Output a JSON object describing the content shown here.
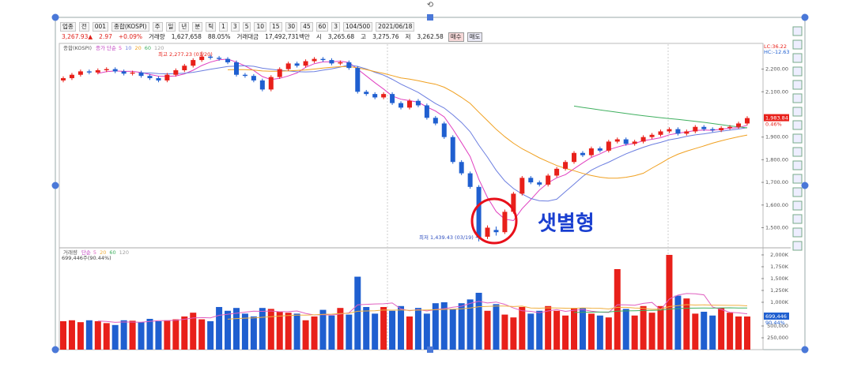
{
  "toolbar": [
    "업종",
    "전",
    "001",
    "종합(KOSPI)",
    "주",
    "일",
    "년",
    "분",
    "틱",
    "1",
    "3",
    "5",
    "10",
    "15",
    "30",
    "45",
    "60",
    "3",
    "104/500",
    "2021/06/18"
  ],
  "quote": [
    "3,267.93▲",
    "2.97",
    "+0.09%",
    "거래량",
    "1,627,658",
    "88.05%",
    "거래대금",
    "17,492,731백만",
    "시",
    "3,265.68",
    "고",
    "3,275.76",
    "저",
    "3,262.58",
    "매수",
    "매도"
  ],
  "chart_data": [
    {
      "type": "candlestick",
      "title": "종합(KOSPI)",
      "ma_label": "종가 단순",
      "ma": [
        {
          "period": 5,
          "color": "#e040c0"
        },
        {
          "period": 10,
          "color": "#6c7ee0"
        },
        {
          "period": 20,
          "color": "#f0a020"
        },
        {
          "period": 60,
          "color": "#40b060"
        },
        {
          "period": 120,
          "color": "#a0a0a0"
        }
      ],
      "up_color": "#e8201a",
      "down_color": "#1f5fd0",
      "open": [
        2150,
        2160,
        2175,
        2190,
        2185,
        2195,
        2200,
        2190,
        2180,
        2185,
        2170,
        2160,
        2150,
        2175,
        2195,
        2215,
        2240,
        2255,
        2250,
        2245,
        2230,
        2175,
        2170,
        2150,
        2110,
        2165,
        2200,
        2225,
        2215,
        2235,
        2245,
        2240,
        2225,
        2230,
        2205,
        2100,
        2090,
        2075,
        2090,
        2050,
        2030,
        2060,
        2040,
        1985,
        1960,
        1900,
        1790,
        1740,
        1680,
        1460,
        1490,
        1480,
        1570,
        1650,
        1720,
        1700,
        1690,
        1730,
        1760,
        1790,
        1830,
        1820,
        1850,
        1840,
        1880,
        1890,
        1870,
        1880,
        1900,
        1910,
        1925,
        1935,
        1915,
        1925,
        1945,
        1935,
        1930,
        1940,
        1945,
        1960
      ],
      "high": [
        2168,
        2183,
        2198,
        2198,
        2203,
        2208,
        2208,
        2198,
        2193,
        2193,
        2178,
        2168,
        2183,
        2203,
        2223,
        2248,
        2277.23,
        2263,
        2258,
        2253,
        2238,
        2183,
        2178,
        2158,
        2173,
        2208,
        2233,
        2233,
        2243,
        2253,
        2253,
        2248,
        2238,
        2238,
        2213,
        2108,
        2098,
        2098,
        2098,
        2058,
        2068,
        2068,
        2048,
        1993,
        1968,
        1908,
        1798,
        1748,
        1688,
        1510,
        1505,
        1580,
        1658,
        1728,
        1728,
        1708,
        1738,
        1768,
        1798,
        1838,
        1838,
        1858,
        1858,
        1888,
        1898,
        1898,
        1888,
        1908,
        1918,
        1933,
        1943,
        1943,
        1933,
        1953,
        1953,
        1943,
        1948,
        1953,
        1968,
        1992
      ],
      "low": [
        2142,
        2152,
        2167,
        2177,
        2177,
        2187,
        2182,
        2172,
        2172,
        2162,
        2152,
        2142,
        2142,
        2167,
        2187,
        2207,
        2232,
        2242,
        2237,
        2222,
        2167,
        2162,
        2142,
        2102,
        2102,
        2157,
        2192,
        2207,
        2207,
        2227,
        2232,
        2217,
        2217,
        2197,
        2092,
        2082,
        2067,
        2067,
        2042,
        2022,
        2022,
        2032,
        1977,
        1952,
        1892,
        1782,
        1732,
        1672,
        1439.43,
        1450,
        1465,
        1472,
        1562,
        1642,
        1692,
        1682,
        1682,
        1722,
        1752,
        1782,
        1812,
        1812,
        1832,
        1832,
        1872,
        1862,
        1862,
        1872,
        1892,
        1902,
        1917,
        1907,
        1907,
        1917,
        1927,
        1922,
        1922,
        1932,
        1937,
        1952
      ],
      "close": [
        2160,
        2175,
        2190,
        2185,
        2195,
        2200,
        2190,
        2180,
        2185,
        2170,
        2160,
        2150,
        2175,
        2195,
        2215,
        2240,
        2255,
        2250,
        2245,
        2230,
        2175,
        2170,
        2150,
        2110,
        2165,
        2200,
        2225,
        2215,
        2235,
        2245,
        2240,
        2225,
        2230,
        2205,
        2100,
        2090,
        2075,
        2090,
        2050,
        2030,
        2060,
        2040,
        1985,
        1960,
        1900,
        1790,
        1740,
        1680,
        1457,
        1500,
        1480,
        1570,
        1650,
        1720,
        1700,
        1690,
        1730,
        1760,
        1790,
        1830,
        1820,
        1850,
        1840,
        1880,
        1890,
        1870,
        1880,
        1900,
        1910,
        1925,
        1935,
        1915,
        1925,
        1945,
        1935,
        1930,
        1940,
        1945,
        1960,
        1983.84
      ],
      "last_label": "1,983.84",
      "last_change": "0.46%",
      "lc": "LC:36.22",
      "hc": "HC:-12.63",
      "high_label": "최고 2,277.23 (01/20)",
      "low_label": "최저 1,439.43 (03/19) →",
      "pattern_label": "샛별형",
      "ylim": [
        1418,
        2303
      ],
      "yticks": [
        {
          "value": 1500,
          "label": "1,500.00"
        },
        {
          "value": 1600,
          "label": "1,600.00"
        },
        {
          "value": 1700,
          "label": "1,700.00"
        },
        {
          "value": 1800,
          "label": "1,800.00"
        },
        {
          "value": 1900,
          "label": "1,900.00"
        },
        {
          "value": 2100,
          "label": "2,100.00"
        },
        {
          "value": 2200,
          "label": "2,200.00"
        }
      ]
    },
    {
      "type": "bar",
      "title": "거래량",
      "ma_label": "단순",
      "ma": [
        {
          "period": 5,
          "color": "#e060c0"
        },
        {
          "period": 20,
          "color": "#f0b040"
        },
        {
          "period": 60,
          "color": "#40b060"
        },
        {
          "period": 120,
          "color": "#a0a0a0"
        }
      ],
      "values": [
        600000,
        620000,
        580000,
        620000,
        600000,
        560000,
        520000,
        620000,
        610000,
        580000,
        650000,
        600000,
        620000,
        640000,
        700000,
        780000,
        640000,
        600000,
        900000,
        820000,
        880000,
        760000,
        700000,
        880000,
        860000,
        800000,
        780000,
        760000,
        620000,
        700000,
        840000,
        720000,
        880000,
        740000,
        1540000,
        900000,
        760000,
        900000,
        820000,
        920000,
        700000,
        880000,
        760000,
        980000,
        1000000,
        860000,
        980000,
        1060000,
        1200000,
        820000,
        960000,
        740000,
        680000,
        900000,
        760000,
        820000,
        920000,
        820000,
        720000,
        880000,
        880000,
        760000,
        720000,
        680000,
        1700000,
        860000,
        720000,
        920000,
        780000,
        920000,
        2000000,
        1140000,
        1080000,
        760000,
        800000,
        720000,
        880000,
        780000,
        700000,
        699446
      ],
      "last_label": "699,446",
      "last_change": "90.44%",
      "info": "699,446주(90.44%)",
      "ylim": [
        0,
        2116000
      ],
      "yticks": [
        {
          "value": 250000,
          "label": "250,000"
        },
        {
          "value": 500000,
          "label": "500,000"
        },
        {
          "value": 1000000,
          "label": "1,000K"
        },
        {
          "value": 1250000,
          "label": "1,250K"
        },
        {
          "value": 1500000,
          "label": "1,500K"
        },
        {
          "value": 1750000,
          "label": "1,750K"
        },
        {
          "value": 2000000,
          "label": "2,000K"
        }
      ]
    }
  ]
}
